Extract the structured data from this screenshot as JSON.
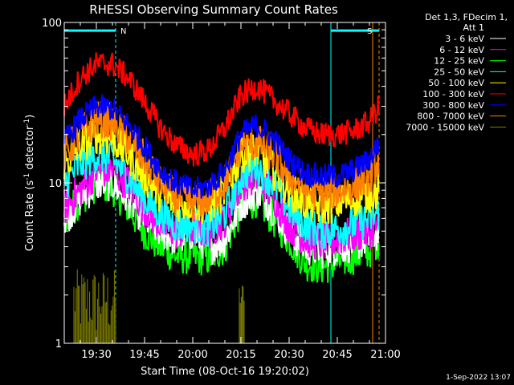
{
  "chart_data": {
    "type": "line",
    "title": "RHESSI Observing Summary Count Rates",
    "xlabel": "Start Time (08-Oct-16 19:20:02)",
    "ylabel_main": "Count Rate (s",
    "ylabel_sup1": "-1",
    "ylabel_mid": " detector",
    "ylabel_sup2": "-1",
    "ylabel_end": ")",
    "y_scale": "log",
    "ylim": [
      1,
      100
    ],
    "xlim_minutes": [
      0,
      100
    ],
    "x_ticks": [
      {
        "label": "19:30",
        "minutes": 10
      },
      {
        "label": "19:45",
        "minutes": 25
      },
      {
        "label": "20:00",
        "minutes": 40
      },
      {
        "label": "20:15",
        "minutes": 55
      },
      {
        "label": "20:30",
        "minutes": 70
      },
      {
        "label": "20:45",
        "minutes": 85
      },
      {
        "label": "21:00",
        "minutes": 100
      }
    ],
    "y_ticks": [
      {
        "label": "1",
        "value": 1
      },
      {
        "label": "10",
        "value": 10
      },
      {
        "label": "100",
        "value": 100
      }
    ],
    "legend_header": [
      "Det 1,3, FDecim 1,",
      "Att 1"
    ],
    "flags": [
      {
        "label": "N",
        "start": 0,
        "end": 16,
        "y": 89,
        "color": "#00ffff"
      },
      {
        "label": "S",
        "start": 83,
        "end": 98,
        "y": 89,
        "color": "#00ffff"
      }
    ],
    "flag_boundaries": [
      {
        "minutes": 16,
        "color": "#00ffff",
        "dashed": true
      },
      {
        "minutes": 83,
        "color": "#00ffff",
        "dashed": false
      },
      {
        "minutes": 96,
        "color": "#ff8000",
        "dashed": false
      },
      {
        "minutes": 98,
        "color": "#ff8000",
        "dashed": true
      }
    ],
    "series": [
      {
        "name": "3 - 6 keV",
        "color": "#ffffff",
        "x": [
          0,
          5,
          10,
          15,
          20,
          25,
          30,
          35,
          40,
          45,
          50,
          55,
          60,
          65,
          70,
          75,
          80,
          85,
          90,
          95,
          98
        ],
        "y": [
          6,
          8,
          10,
          10,
          8,
          6,
          5,
          4.5,
          5,
          4,
          4.5,
          7.5,
          9,
          7,
          5,
          4,
          3.8,
          4,
          4.2,
          4.5,
          5
        ]
      },
      {
        "name": "6 - 12 keV",
        "color": "#ff00ff",
        "x": [
          0,
          5,
          10,
          15,
          20,
          25,
          30,
          35,
          40,
          45,
          50,
          55,
          60,
          65,
          70,
          75,
          80,
          85,
          90,
          95,
          98
        ],
        "y": [
          7,
          9,
          12,
          12,
          10,
          7,
          5.5,
          5,
          5.2,
          5,
          6,
          10,
          11,
          8.5,
          5.5,
          4.5,
          4.2,
          4.5,
          4.8,
          5,
          5.5
        ]
      },
      {
        "name": "12 - 25 keV",
        "color": "#00ff00",
        "x": [
          0,
          5,
          10,
          15,
          20,
          25,
          30,
          35,
          40,
          45,
          50,
          55,
          60,
          65,
          70,
          75,
          80,
          85,
          90,
          95,
          98
        ],
        "y": [
          6,
          8,
          10,
          9.5,
          7,
          5,
          4,
          3.5,
          3.5,
          3.4,
          4,
          7,
          8,
          6,
          4.5,
          3.2,
          3,
          3.2,
          3.5,
          3.8,
          4.5
        ]
      },
      {
        "name": "25 - 50 keV",
        "color": "#00ffff",
        "x": [
          0,
          5,
          10,
          15,
          20,
          25,
          30,
          35,
          40,
          45,
          50,
          55,
          60,
          65,
          70,
          75,
          80,
          85,
          90,
          95,
          98
        ],
        "y": [
          10,
          13,
          15,
          14,
          11,
          8,
          6.5,
          5.5,
          5.5,
          5.2,
          6.5,
          11,
          13,
          10,
          7,
          5.5,
          5,
          5.2,
          5.5,
          6,
          6.5
        ]
      },
      {
        "name": "50 - 100 keV",
        "color": "#ffff00",
        "x": [
          0,
          5,
          10,
          15,
          20,
          25,
          30,
          35,
          40,
          45,
          50,
          55,
          60,
          65,
          70,
          75,
          80,
          85,
          90,
          95,
          98
        ],
        "y": [
          13,
          17,
          20,
          19,
          15,
          11,
          8.5,
          7.5,
          7.5,
          7,
          9,
          15,
          16,
          12,
          9,
          7.5,
          7,
          7.5,
          8,
          8.5,
          9
        ]
      },
      {
        "name": "100 - 300 keV",
        "color": "#ff0000",
        "x": [
          0,
          5,
          10,
          15,
          20,
          25,
          30,
          35,
          40,
          45,
          50,
          55,
          60,
          65,
          70,
          75,
          80,
          85,
          90,
          95,
          98
        ],
        "y": [
          30,
          45,
          55,
          55,
          45,
          32,
          22,
          17,
          15,
          16,
          22,
          35,
          40,
          33,
          27,
          22,
          20,
          20,
          21,
          24,
          30
        ]
      },
      {
        "name": "300 - 800 keV",
        "color": "#0000ff",
        "x": [
          0,
          5,
          10,
          15,
          20,
          25,
          30,
          35,
          40,
          45,
          50,
          55,
          60,
          65,
          70,
          75,
          80,
          85,
          90,
          95,
          98
        ],
        "y": [
          18,
          25,
          30,
          29,
          23,
          17,
          12,
          10,
          9,
          9.5,
          12,
          20,
          23,
          19,
          14,
          11.5,
          11,
          11,
          12,
          14,
          18
        ]
      },
      {
        "name": "800 - 7000 keV",
        "color": "#ff8000",
        "x": [
          0,
          5,
          10,
          15,
          20,
          25,
          30,
          35,
          40,
          45,
          50,
          55,
          60,
          65,
          70,
          75,
          80,
          85,
          90,
          95,
          98
        ],
        "y": [
          15,
          20,
          25,
          24,
          19,
          14,
          10,
          8,
          7.5,
          8,
          10,
          17,
          18,
          15,
          11,
          9,
          8.5,
          9,
          9.5,
          11,
          14
        ]
      },
      {
        "name": "7000 - 15000 keV",
        "color": "#808000",
        "x": [
          3,
          6,
          9,
          12,
          15,
          16,
          55,
          56
        ],
        "y": [
          2,
          2,
          2.8,
          2.2,
          2,
          1,
          2,
          1
        ]
      }
    ]
  },
  "footer_date": "1-Sep-2022 13:07"
}
